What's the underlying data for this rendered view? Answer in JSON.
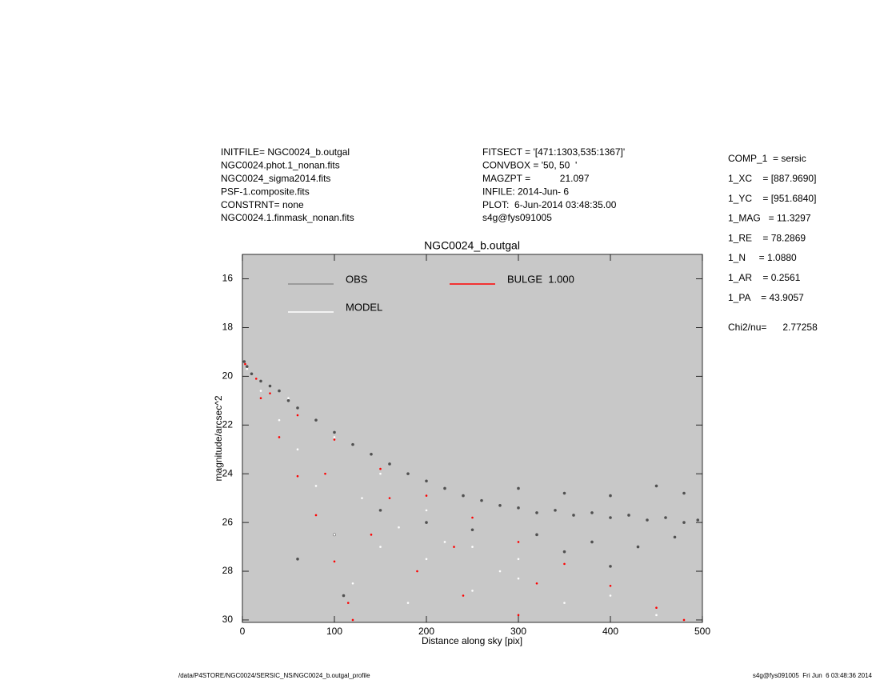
{
  "header": {
    "left": [
      "INITFILE= NGC0024_b.outgal",
      "NGC0024.phot.1_nonan.fits",
      "NGC0024_sigma2014.fits",
      "PSF-1.composite.fits",
      "CONSTRNT= none",
      "NGC0024.1.finmask_nonan.fits"
    ],
    "middle": [
      "FITSECT = '[471:1303,535:1367]'",
      "CONVBOX = '50, 50  '",
      "MAGZPT =           21.097",
      "INFILE: 2014-Jun- 6",
      "PLOT:  6-Jun-2014 03:48:35.00",
      "s4g@fys091005"
    ],
    "right": [
      "COMP_1  = sersic",
      "1_XC    = [887.9690]",
      "1_YC    = [951.6840]",
      "1_MAG   = 11.3297",
      "1_RE    = 78.2869",
      "1_N     = 1.0880",
      "1_AR    = 0.2561",
      "1_PA    = 43.9057"
    ],
    "chi2": "Chi2/nu=      2.77258"
  },
  "chart_data": {
    "type": "scatter",
    "title": "NGC0024_b.outgal",
    "x_label": "Distance along sky [pix]",
    "y_label": "magnitude/arcsec^2",
    "xlim": [
      0,
      500
    ],
    "ylim": [
      15,
      30.1
    ],
    "y_inverted": true,
    "xticks": [
      0,
      100,
      200,
      300,
      400,
      500
    ],
    "yticks": [
      16,
      18,
      20,
      22,
      24,
      26,
      28,
      30
    ],
    "series": [
      {
        "name": "OBS",
        "color": "#505050",
        "legend_color": "#8c8c8c",
        "x": [
          2,
          5,
          10,
          20,
          30,
          40,
          50,
          60,
          80,
          100,
          120,
          140,
          160,
          180,
          200,
          220,
          240,
          260,
          280,
          300,
          320,
          340,
          360,
          380,
          400,
          420,
          440,
          460,
          480,
          495,
          300,
          350,
          400,
          450,
          480,
          320,
          380,
          430,
          470,
          250,
          200,
          150,
          100,
          60,
          110,
          400,
          350
        ],
        "values": [
          19.4,
          19.6,
          19.9,
          20.2,
          20.4,
          20.6,
          21.0,
          21.3,
          21.8,
          22.3,
          22.8,
          23.2,
          23.6,
          24.0,
          24.3,
          24.6,
          24.9,
          25.1,
          25.3,
          25.4,
          25.6,
          25.5,
          25.7,
          25.6,
          25.8,
          25.7,
          25.9,
          25.8,
          26.0,
          25.9,
          24.6,
          24.8,
          24.9,
          24.5,
          24.8,
          26.5,
          26.8,
          27.0,
          26.6,
          26.3,
          26.0,
          25.5,
          26.5,
          27.5,
          29.0,
          27.8,
          27.2
        ]
      },
      {
        "name": "MODEL",
        "color": "#ffffff",
        "legend_color": "#ffffff",
        "x": [
          5,
          20,
          40,
          60,
          80,
          100,
          50,
          100,
          150,
          200,
          250,
          300,
          350,
          120,
          150,
          200,
          250,
          180,
          300,
          400,
          450,
          130,
          170,
          220,
          280
        ],
        "values": [
          19.7,
          20.6,
          21.8,
          23.0,
          24.5,
          26.5,
          20.9,
          22.5,
          24.0,
          25.5,
          27.0,
          28.3,
          29.3,
          28.5,
          27.0,
          27.5,
          28.8,
          29.3,
          27.5,
          29.0,
          29.8,
          25.0,
          26.2,
          26.8,
          28.0
        ]
      },
      {
        "name": "BULGE  1.000",
        "color": "#ff0000",
        "legend_color": "#ff0000",
        "x": [
          3,
          15,
          30,
          60,
          100,
          150,
          200,
          250,
          300,
          350,
          400,
          450,
          480,
          20,
          40,
          60,
          80,
          100,
          115,
          120,
          90,
          140,
          190,
          240,
          300,
          160,
          230,
          320
        ],
        "values": [
          19.5,
          20.1,
          20.7,
          21.6,
          22.6,
          23.8,
          24.9,
          25.8,
          26.8,
          27.7,
          28.6,
          29.5,
          30.0,
          20.9,
          22.5,
          24.1,
          25.7,
          27.6,
          29.3,
          30.0,
          24.0,
          26.5,
          28.0,
          29.0,
          29.8,
          25.0,
          27.0,
          28.5
        ]
      }
    ]
  },
  "footer": {
    "left": "/data/P4STORE/NGC0024/SERSIC_NS/NGC0024_b.outgal_profile",
    "right": "s4g@fys091005  Fri Jun  6 03:48:36 2014"
  }
}
